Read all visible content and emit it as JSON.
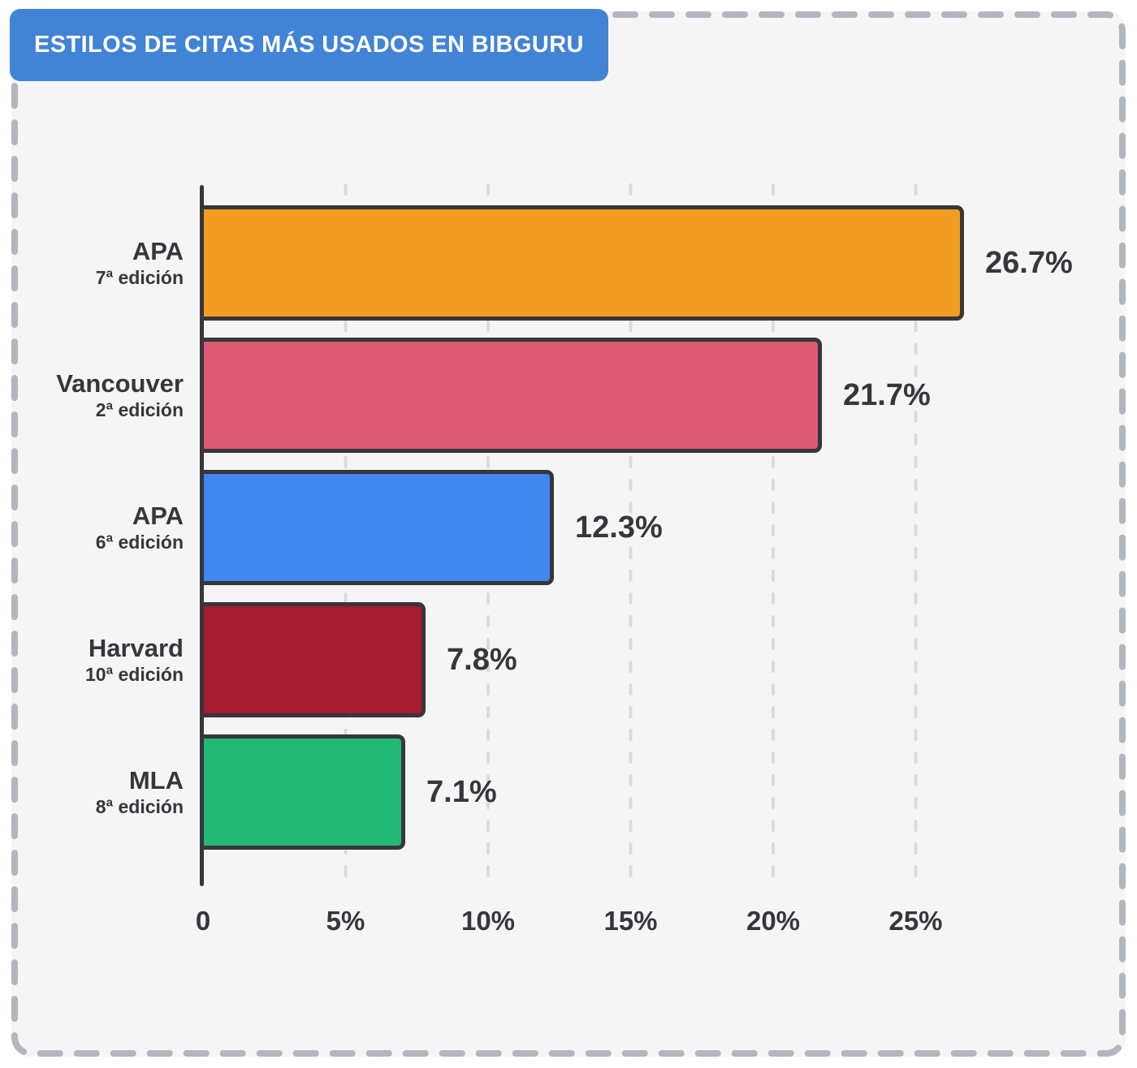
{
  "header": {
    "title": "ESTILOS DE CITAS MÁS USADOS EN BIBGURU"
  },
  "colors": {
    "page_bg": "#FFFFFF",
    "card_bg": "#F5F5F6",
    "card_border": "#B2B6BD",
    "title_bg": "#4183D5",
    "ink": "#36363C",
    "grid": "#DBDBDE"
  },
  "chart_data": {
    "type": "bar",
    "orientation": "horizontal",
    "title": "ESTILOS DE CITAS MÁS USADOS EN BIBGURU",
    "categories": [
      "APA",
      "Vancouver",
      "APA",
      "Harvard",
      "MLA"
    ],
    "category_sublabels": [
      "7ª edición",
      "2ª edición",
      "6ª edición",
      "10ª edición",
      "8ª edición"
    ],
    "values": [
      26.7,
      21.7,
      12.3,
      7.8,
      7.1
    ],
    "value_labels": [
      "26.7%",
      "21.7%",
      "12.3%",
      "7.8%",
      "7.1%"
    ],
    "bar_colors": [
      "#F29D22",
      "#DD5A74",
      "#4286EF",
      "#A81C30",
      "#23B878"
    ],
    "unit": "%",
    "xlabel": "",
    "ylabel": "",
    "xlim": [
      0,
      27.5
    ],
    "x_ticks": [
      0,
      5,
      10,
      15,
      20,
      25
    ],
    "x_tick_labels": [
      "0",
      "5%",
      "10%",
      "15%",
      "20%",
      "25%"
    ],
    "grid": "dashed vertical gridlines at x ticks, no bottom axis line",
    "legend": "none"
  }
}
